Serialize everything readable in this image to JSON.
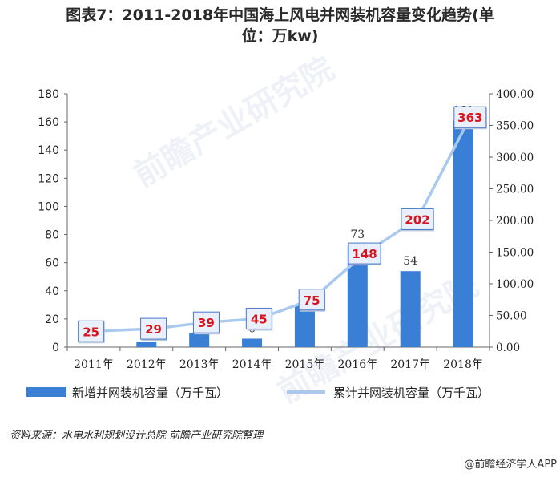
{
  "title": {
    "line1": "图表7：2011-2018年中国海上风电并网装机容量变化趋势(单",
    "line2": "位：万kw)"
  },
  "watermark": {
    "text": "前瞻产业研究院"
  },
  "source": "资料来源：水电水利规划设计总院 前瞻产业研究院整理",
  "credit": "@前瞻经济学人APP",
  "chart_data": {
    "type": "bar",
    "categories": [
      "2011年",
      "2012年",
      "2013年",
      "2014年",
      "2015年",
      "2016年",
      "2017年",
      "2018年"
    ],
    "series": [
      {
        "name": "新增并网装机容量（万千瓦）",
        "type": "bar",
        "axis": "left",
        "values": [
          null,
          4,
          10,
          6,
          30,
          73,
          54,
          161
        ],
        "labels": [
          "",
          "4",
          "10",
          "6",
          "30",
          "73",
          "54",
          "161"
        ]
      },
      {
        "name": "累计并网装机容量（万千瓦）",
        "type": "line",
        "axis": "right",
        "values": [
          25,
          29,
          39,
          45,
          75,
          148,
          202,
          363
        ],
        "labels": [
          "25",
          "29",
          "39",
          "45",
          "75",
          "148",
          "202",
          "363"
        ]
      }
    ],
    "y_left": {
      "min": 0,
      "max": 180,
      "ticks": [
        "0",
        "20",
        "40",
        "60",
        "80",
        "100",
        "120",
        "140",
        "160",
        "180"
      ]
    },
    "y_right": {
      "min": 0,
      "max": 400,
      "ticks": [
        "0.00",
        "50.00",
        "100.00",
        "150.00",
        "200.00",
        "250.00",
        "300.00",
        "350.00",
        "400.00"
      ]
    },
    "legend_position": "bottom",
    "grid": false,
    "colors": {
      "bar": "#3a7fd6",
      "line": "#a9c9ee",
      "label_text": "#d9141e",
      "label_border": "#4a78c8",
      "label_bg": "#eaf0fb"
    }
  }
}
